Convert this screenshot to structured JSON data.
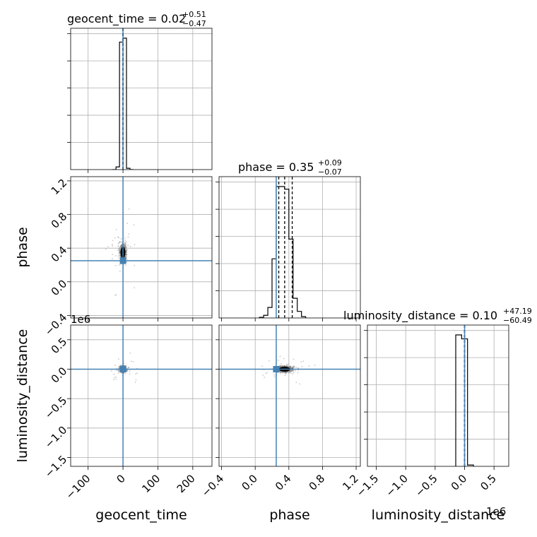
{
  "chart_data": {
    "type": "corner",
    "parameters": [
      "geocent_time",
      "phase",
      "luminosity_distance"
    ],
    "truths": {
      "geocent_time": 0.0,
      "phase": 0.25,
      "luminosity_distance": 0.0
    },
    "truth_color": "#4682b4",
    "titles": [
      {
        "param": "geocent_time",
        "text": "geocent_time = 0.02",
        "plus": "+0.51",
        "minus": "−0.47"
      },
      {
        "param": "phase",
        "text": "phase = 0.35",
        "plus": "+0.09",
        "minus": "−0.07"
      },
      {
        "param": "luminosity_distance",
        "text": "luminosity_distance = 0.10",
        "plus": "+47.19",
        "minus": "−60.49"
      }
    ],
    "axes": {
      "geocent_time": {
        "lim": [
          -150,
          255
        ],
        "ticks": [
          -100,
          0,
          100,
          200
        ],
        "tick_labels": [
          "−100",
          "0",
          "100",
          "200"
        ]
      },
      "phase": {
        "lim": [
          -0.43,
          1.25
        ],
        "ticks": [
          -0.4,
          0.0,
          0.4,
          0.8,
          1.2
        ],
        "tick_labels": [
          "−0.4",
          "0.0",
          "0.4",
          "0.8",
          "1.2"
        ]
      },
      "luminosity_distance": {
        "lim": [
          -1.65,
          0.75
        ],
        "ticks": [
          -1.5,
          -1.0,
          -0.5,
          0.0,
          0.5
        ],
        "tick_labels": [
          "−1.5",
          "−1.0",
          "−0.5",
          "0.0",
          "0.5"
        ],
        "offset_text": "1e6"
      }
    },
    "axis_labels": {
      "x": [
        "geocent_time",
        "phase",
        "luminosity_distance"
      ],
      "y": [
        "phase",
        "luminosity_distance"
      ]
    },
    "histograms": {
      "geocent_time": {
        "bin_edges": [
          -30,
          -20,
          -10,
          0,
          10,
          20,
          30
        ],
        "counts": [
          0,
          0.02,
          0.97,
          1.0,
          0.01,
          0
        ]
      },
      "phase": {
        "bin_edges": [
          0.05,
          0.1,
          0.15,
          0.2,
          0.25,
          0.3,
          0.35,
          0.4,
          0.45,
          0.5,
          0.55,
          0.6
        ],
        "counts": [
          0.005,
          0.02,
          0.08,
          0.45,
          1.0,
          1.0,
          0.98,
          0.6,
          0.15,
          0.05,
          0.01
        ]
      },
      "luminosity_distance": {
        "bin_edges": [
          -0.15,
          -0.05,
          0.05,
          0.15
        ],
        "counts": [
          1.0,
          0.97,
          0.01
        ]
      }
    },
    "quantiles": {
      "geocent_time": [
        -0.45,
        0.02,
        0.53
      ],
      "phase": [
        0.28,
        0.35,
        0.44
      ],
      "luminosity_distance": [
        -6e-05,
        1e-07,
        5e-05
      ]
    },
    "grid": true
  }
}
